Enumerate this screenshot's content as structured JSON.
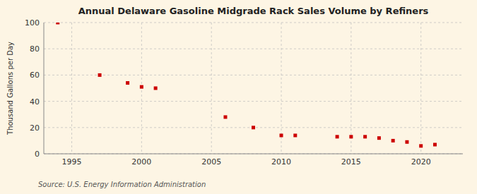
{
  "chart_data": {
    "type": "scatter",
    "title": "Annual Delaware Gasoline Midgrade Rack Sales Volume by Refiners",
    "ylabel": "Thousand Gallons per Day",
    "source": "Source: U.S. Energy Information Administration",
    "x": [
      1994,
      1997,
      1999,
      2000,
      2001,
      2006,
      2008,
      2010,
      2011,
      2014,
      2015,
      2016,
      2017,
      2018,
      2019,
      2020,
      2021
    ],
    "values": [
      100,
      60,
      54,
      51,
      50,
      28,
      20,
      14,
      14,
      13,
      13,
      13,
      12,
      10,
      9,
      6,
      7
    ],
    "color": "#cc0000",
    "marker": "square",
    "xlim": [
      1993,
      2023
    ],
    "ylim": [
      0,
      100
    ],
    "xticks": [
      1995,
      2000,
      2005,
      2010,
      2015,
      2020
    ],
    "yticks": [
      0,
      20,
      40,
      60,
      80,
      100
    ],
    "grid": true
  }
}
